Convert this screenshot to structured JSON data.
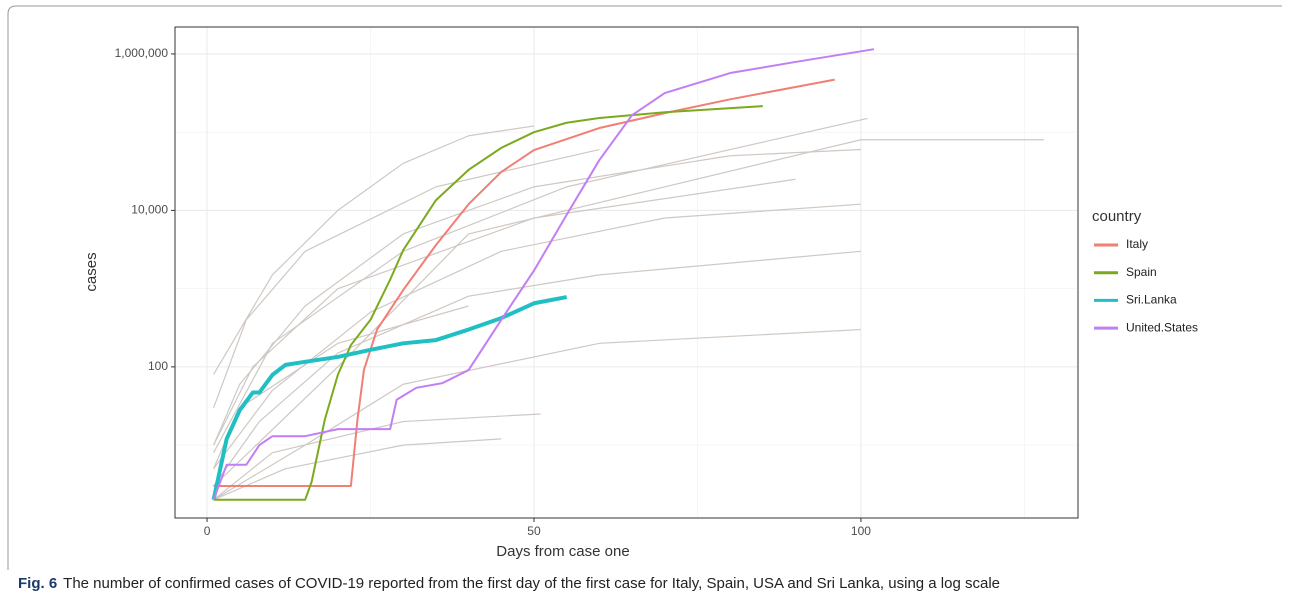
{
  "chart_data": {
    "type": "line",
    "x_label": "Days from case one",
    "y_label": "cases",
    "log_y": true,
    "grid": true,
    "legend_title": "country",
    "legend_position": "right",
    "xlim": [
      -4.9,
      133.2
    ],
    "ylim": [
      1.17,
      2210000
    ],
    "xticks": [
      0,
      50,
      100
    ],
    "minor_xticks": [
      25,
      75,
      125
    ],
    "yticks": [
      100,
      {
        "value": 10000,
        "label": "10,000"
      },
      {
        "value": 1000000,
        "label": "1,000,000"
      }
    ],
    "minor_yticks": [
      10,
      1000,
      100000
    ],
    "series": [
      {
        "name": "Italy",
        "color": "#f07f74",
        "x": [
          1,
          22,
          23,
          24,
          26,
          30,
          35,
          40,
          45,
          50,
          60,
          70,
          80,
          96
        ],
        "values": [
          3,
          3,
          21,
          92,
          300,
          960,
          3600,
          12000,
          31000,
          59000,
          113000,
          175000,
          263000,
          470000
        ]
      },
      {
        "name": "Spain",
        "color": "#7caa1e",
        "x": [
          1,
          15,
          16,
          18,
          20,
          22,
          25,
          28,
          30,
          35,
          40,
          45,
          50,
          55,
          60,
          70,
          85
        ],
        "values": [
          2,
          2,
          3.4,
          21,
          79,
          190,
          400,
          1300,
          3100,
          13500,
          33000,
          63000,
          100000,
          132000,
          152000,
          180000,
          215000
        ]
      },
      {
        "name": "Sri.Lanka",
        "color": "#1fbfc4",
        "x": [
          1,
          3,
          5,
          7,
          8,
          10,
          12,
          15,
          20,
          25,
          30,
          35,
          40,
          45,
          50,
          55
        ],
        "values": [
          2,
          12,
          28,
          47,
          47,
          79,
          106,
          116,
          134,
          165,
          200,
          220,
          300,
          420,
          650,
          780
        ]
      },
      {
        "name": "United.States",
        "color": "#c27ef4",
        "x": [
          1,
          3,
          6,
          8,
          10,
          15,
          20,
          28,
          29,
          32,
          36,
          40,
          45,
          50,
          55,
          60,
          65,
          70,
          80,
          90,
          102
        ],
        "values": [
          2,
          5.6,
          5.6,
          10,
          13,
          13,
          16,
          16,
          38,
          54,
          62,
          91,
          400,
          1700,
          8800,
          44000,
          165000,
          316000,
          570000,
          790000,
          1150000
        ]
      }
    ],
    "background_color": "#cfc8c3",
    "background_lines": [
      {
        "x": [
          1,
          10,
          20,
          30,
          40,
          50
        ],
        "values": [
          80,
          1500,
          10000,
          40000,
          90000,
          120000
        ]
      },
      {
        "x": [
          1,
          5,
          15,
          30,
          50,
          80,
          100
        ],
        "values": [
          10,
          60,
          600,
          5000,
          20000,
          50000,
          60000
        ]
      },
      {
        "x": [
          1,
          10,
          25,
          45,
          70,
          100
        ],
        "values": [
          5,
          50,
          500,
          3000,
          8000,
          12000
        ]
      },
      {
        "x": [
          1,
          8,
          20,
          40,
          60,
          100
        ],
        "values": [
          3,
          20,
          150,
          800,
          1500,
          3000
        ]
      },
      {
        "x": [
          1,
          15,
          30,
          60,
          100
        ],
        "values": [
          2,
          10,
          60,
          200,
          300
        ]
      },
      {
        "x": [
          1,
          5,
          20,
          40
        ],
        "values": [
          5,
          30,
          200,
          600
        ]
      },
      {
        "x": [
          1,
          10,
          30,
          51
        ],
        "values": [
          2,
          8,
          20,
          25
        ]
      },
      {
        "x": [
          1,
          20,
          40,
          100,
          128
        ],
        "values": [
          3,
          100,
          5000,
          80000,
          80000
        ]
      },
      {
        "x": [
          1,
          10,
          30,
          55,
          80,
          101
        ],
        "values": [
          8,
          200,
          3000,
          20000,
          60000,
          150000
        ]
      },
      {
        "x": [
          1,
          6,
          15,
          35,
          60
        ],
        "values": [
          30,
          400,
          3000,
          20000,
          60000
        ]
      },
      {
        "x": [
          1,
          12,
          30,
          45
        ],
        "values": [
          2,
          5,
          10,
          12
        ]
      },
      {
        "x": [
          1,
          7,
          20,
          50,
          90
        ],
        "values": [
          10,
          100,
          1000,
          8000,
          25000
        ]
      }
    ],
    "caption_label": "Fig. 6",
    "caption": "The number of confirmed cases of COVID-19 reported from the first day of the first case for Italy, Spain, USA and Sri Lanka, using a log scale"
  }
}
